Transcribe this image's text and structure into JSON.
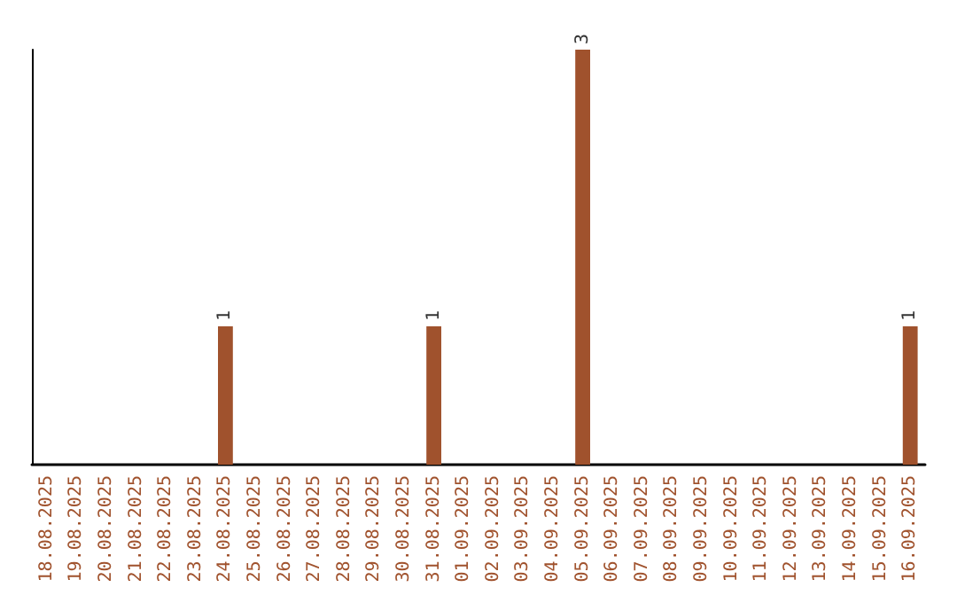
{
  "chart_data": {
    "type": "bar",
    "categories": [
      "18.08.2025",
      "19.08.2025",
      "20.08.2025",
      "21.08.2025",
      "22.08.2025",
      "23.08.2025",
      "24.08.2025",
      "25.08.2025",
      "26.08.2025",
      "27.08.2025",
      "28.08.2025",
      "29.08.2025",
      "30.08.2025",
      "31.08.2025",
      "01.09.2025",
      "02.09.2025",
      "03.09.2025",
      "04.09.2025",
      "05.09.2025",
      "06.09.2025",
      "07.09.2025",
      "08.09.2025",
      "09.09.2025",
      "10.09.2025",
      "11.09.2025",
      "12.09.2025",
      "13.09.2025",
      "14.09.2025",
      "15.09.2025",
      "16.09.2025"
    ],
    "values": [
      0,
      0,
      0,
      0,
      0,
      0,
      1,
      0,
      0,
      0,
      0,
      0,
      0,
      1,
      0,
      0,
      0,
      0,
      3,
      0,
      0,
      0,
      0,
      0,
      0,
      0,
      0,
      0,
      0,
      1
    ],
    "value_labels": [
      null,
      null,
      null,
      null,
      null,
      null,
      "1",
      null,
      null,
      null,
      null,
      null,
      null,
      "1",
      null,
      null,
      null,
      null,
      "3",
      null,
      null,
      null,
      null,
      null,
      null,
      null,
      null,
      null,
      null,
      "1"
    ],
    "color": "#a0522d",
    "grid": false
  }
}
